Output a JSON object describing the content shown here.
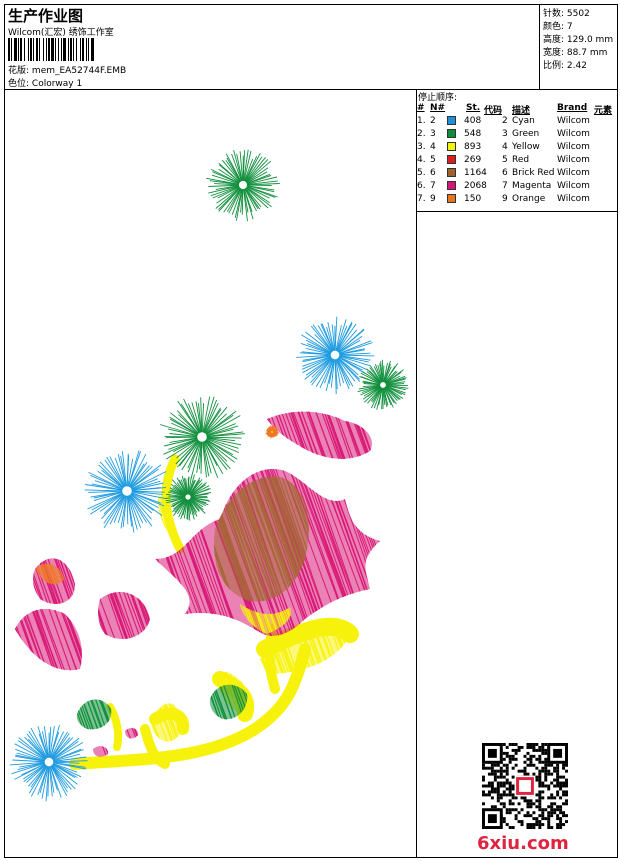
{
  "header": {
    "title": "生产作业图",
    "company": "Wilcom(汇宏) 绣饰工作室",
    "design_label": "花版:",
    "design_value": "mem_EA52744F.EMB",
    "colorway_label": "色位:",
    "colorway_value": "Colorway 1"
  },
  "stats": [
    {
      "label": "针数:",
      "value": "5502"
    },
    {
      "label": "颜色:",
      "value": "7"
    },
    {
      "label": "高度:",
      "value": "129.0 mm"
    },
    {
      "label": "宽度:",
      "value": "88.7 mm"
    },
    {
      "label": "比例:",
      "value": "2.42"
    }
  ],
  "stop_sequence": {
    "title": "停止顺序:",
    "headers": {
      "num": "#",
      "n": "N#",
      "st": "St.",
      "code": "代码",
      "desc": "描述",
      "brand": "Brand",
      "element": "元素"
    },
    "rows": [
      {
        "num": "1.",
        "n": "2",
        "color": "#1e90d8",
        "st": "408",
        "code": "2",
        "desc": "Cyan",
        "brand": "Wilcom"
      },
      {
        "num": "2.",
        "n": "3",
        "color": "#0e8c3a",
        "st": "548",
        "code": "3",
        "desc": "Green",
        "brand": "Wilcom"
      },
      {
        "num": "3.",
        "n": "4",
        "color": "#f5f20a",
        "st": "893",
        "code": "4",
        "desc": "Yellow",
        "brand": "Wilcom"
      },
      {
        "num": "4.",
        "n": "5",
        "color": "#d81e1e",
        "st": "269",
        "code": "5",
        "desc": "Red",
        "brand": "Wilcom"
      },
      {
        "num": "5.",
        "n": "6",
        "color": "#a0622d",
        "st": "1164",
        "code": "6",
        "desc": "Brick Red",
        "brand": "Wilcom"
      },
      {
        "num": "6.",
        "n": "7",
        "color": "#d4147a",
        "st": "2068",
        "code": "7",
        "desc": "Magenta",
        "brand": "Wilcom"
      },
      {
        "num": "7.",
        "n": "9",
        "color": "#e8741e",
        "st": "150",
        "code": "9",
        "desc": "Orange",
        "brand": "Wilcom"
      }
    ]
  },
  "watermark": "6xiu.com",
  "colors": {
    "cyan": "#1e9be0",
    "green": "#12903e",
    "yellow": "#f7f20c",
    "brick": "#a8683a",
    "magenta": "#d81b78",
    "orange": "#f07a22",
    "red": "#e02828"
  }
}
